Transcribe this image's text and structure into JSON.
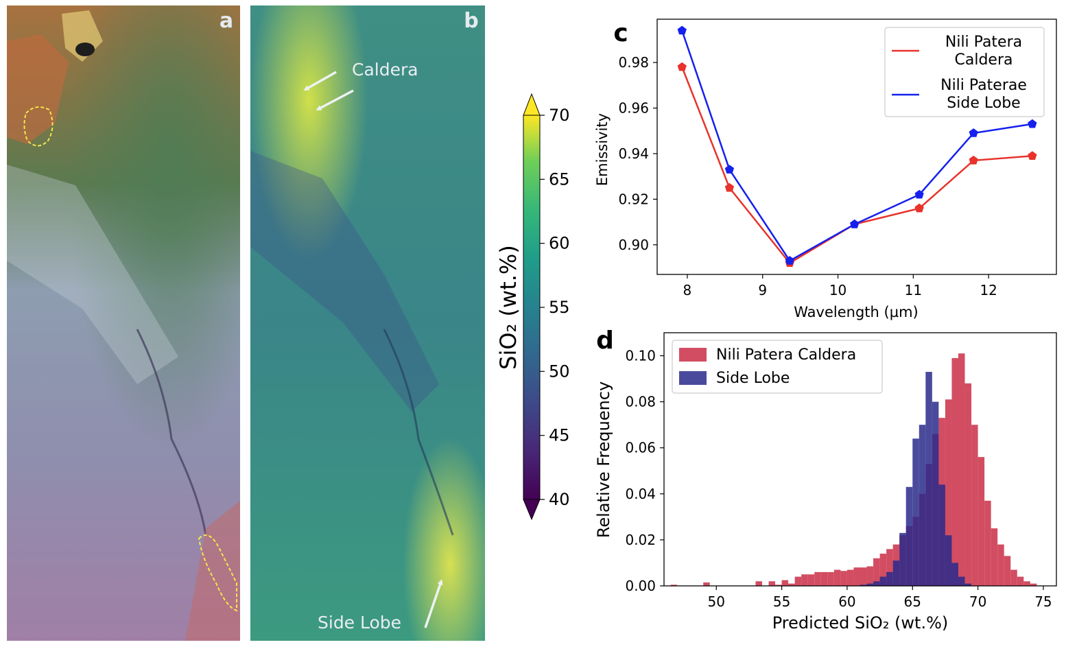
{
  "panel_labels": {
    "a": "a",
    "b": "b",
    "c": "c",
    "d": "d"
  },
  "map_annotations": {
    "caldera": "Caldera",
    "side_lobe": "Side Lobe"
  },
  "colorbar": {
    "label": "SiO₂ (wt.%)",
    "ticks": [
      "70",
      "65",
      "60",
      "55",
      "50",
      "45",
      "40"
    ],
    "range": [
      40,
      70
    ],
    "extend": "both",
    "colormap": "viridis"
  },
  "chart_data": [
    {
      "type": "line",
      "panel": "c",
      "xlabel": "Wavelength (µm)",
      "ylabel": "Emissivity",
      "xlim": [
        7.6,
        12.9
      ],
      "ylim": [
        0.887,
        0.999
      ],
      "xticks": [
        "8",
        "9",
        "10",
        "11",
        "12"
      ],
      "yticks": [
        "0.90",
        "0.92",
        "0.94",
        "0.96",
        "0.98"
      ],
      "legend_position": "top-right",
      "x": [
        7.93,
        8.56,
        9.36,
        10.22,
        11.08,
        11.8,
        12.58
      ],
      "series": [
        {
          "name": "Nili Patera Caldera",
          "name_lines": [
            "Nili Patera",
            "Caldera"
          ],
          "color": "#e8322b",
          "values": [
            0.978,
            0.925,
            0.892,
            0.909,
            0.916,
            0.937,
            0.939
          ]
        },
        {
          "name": "Nili Paterae Side Lobe",
          "name_lines": [
            "Nili Paterae",
            "Side Lobe"
          ],
          "color": "#1520ee",
          "values": [
            0.994,
            0.933,
            0.893,
            0.909,
            0.922,
            0.949,
            0.953
          ]
        }
      ]
    },
    {
      "type": "bar",
      "panel": "d",
      "xlabel": "Predicted SiO₂ (wt.%)",
      "ylabel": "Relative Frequency",
      "xlim": [
        46.0,
        76.0
      ],
      "ylim": [
        0,
        0.11
      ],
      "xticks": [
        "50",
        "55",
        "60",
        "65",
        "70",
        "75"
      ],
      "yticks": [
        "0.00",
        "0.02",
        "0.04",
        "0.06",
        "0.08",
        "0.10"
      ],
      "legend_position": "top-left",
      "bin_edges": [
        46.5,
        47,
        47.5,
        48,
        48.5,
        49,
        49.5,
        50,
        50.5,
        51,
        51.5,
        52,
        52.5,
        53,
        53.5,
        54,
        54.5,
        55,
        55.5,
        56,
        56.5,
        57,
        57.5,
        58,
        58.5,
        59,
        59.5,
        60,
        60.5,
        61,
        61.5,
        62,
        62.5,
        63,
        63.5,
        64,
        64.5,
        65,
        65.5,
        66,
        66.5,
        67,
        67.5,
        68,
        68.5,
        69,
        69.5,
        70,
        70.5,
        71,
        71.5,
        72,
        72.5,
        73,
        73.5,
        74,
        74.5
      ],
      "series": [
        {
          "name": "Nili Patera Caldera",
          "color": "#d0435a",
          "values": [
            0.0005,
            0,
            0,
            0,
            0,
            0.0015,
            0,
            0,
            0,
            0,
            0,
            0,
            0,
            0.002,
            0,
            0.002,
            0.0005,
            0.0025,
            0.001,
            0.004,
            0.005,
            0.005,
            0.006,
            0.006,
            0.006,
            0.007,
            0.0065,
            0.007,
            0.008,
            0.008,
            0.0085,
            0.012,
            0.014,
            0.016,
            0.018,
            0.022,
            0.026,
            0.03,
            0.04,
            0.053,
            0.066,
            0.073,
            0.081,
            0.099,
            0.101,
            0.088,
            0.07,
            0.056,
            0.037,
            0.025,
            0.018,
            0.013,
            0.007,
            0.004,
            0.002,
            0.001
          ]
        },
        {
          "name": "Side Lobe",
          "color": "#2a2a8c",
          "values": [
            0,
            0,
            0,
            0,
            0,
            0,
            0,
            0,
            0,
            0,
            0,
            0,
            0,
            0,
            0,
            0,
            0,
            0,
            0,
            0,
            0,
            0,
            0,
            0,
            0,
            0,
            0,
            0,
            0,
            0.0005,
            0.001,
            0.002,
            0.004,
            0.006,
            0.011,
            0.023,
            0.043,
            0.064,
            0.07,
            0.093,
            0.08,
            0.044,
            0.022,
            0.01,
            0.004,
            0.001,
            0,
            0,
            0,
            0,
            0,
            0,
            0,
            0,
            0,
            0
          ]
        }
      ]
    }
  ]
}
